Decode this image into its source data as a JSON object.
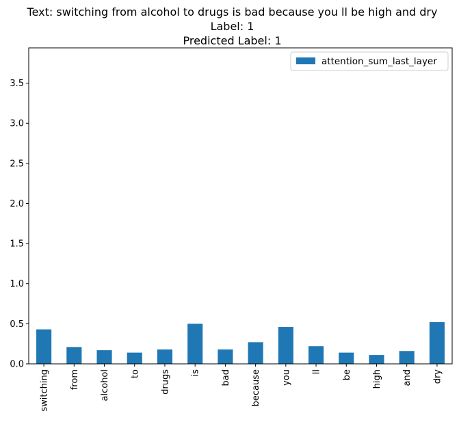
{
  "chart_data": {
    "type": "bar",
    "title_lines": [
      "Text: switching from alcohol to drugs is bad because you ll be high and dry",
      "Label: 1",
      "Predicted Label: 1"
    ],
    "xlabel": "",
    "ylabel": "",
    "categories": [
      "switching",
      "from",
      "alcohol",
      "to",
      "drugs",
      "is",
      "bad",
      "because",
      "you",
      "ll",
      "be",
      "high",
      "and",
      "dry"
    ],
    "series": [
      {
        "name": "attention_sum_last_layer",
        "color": "#1f77b4",
        "values": [
          0.43,
          0.21,
          0.17,
          0.14,
          0.18,
          0.5,
          0.18,
          0.27,
          0.46,
          0.22,
          0.14,
          0.11,
          0.16,
          0.52
        ]
      }
    ],
    "ylim": [
      0,
      3.94
    ],
    "yticks": [
      "0.0",
      "0.5",
      "1.0",
      "1.5",
      "2.0",
      "2.5",
      "3.0",
      "3.5"
    ],
    "legend_position": "top-right",
    "grid": false
  }
}
